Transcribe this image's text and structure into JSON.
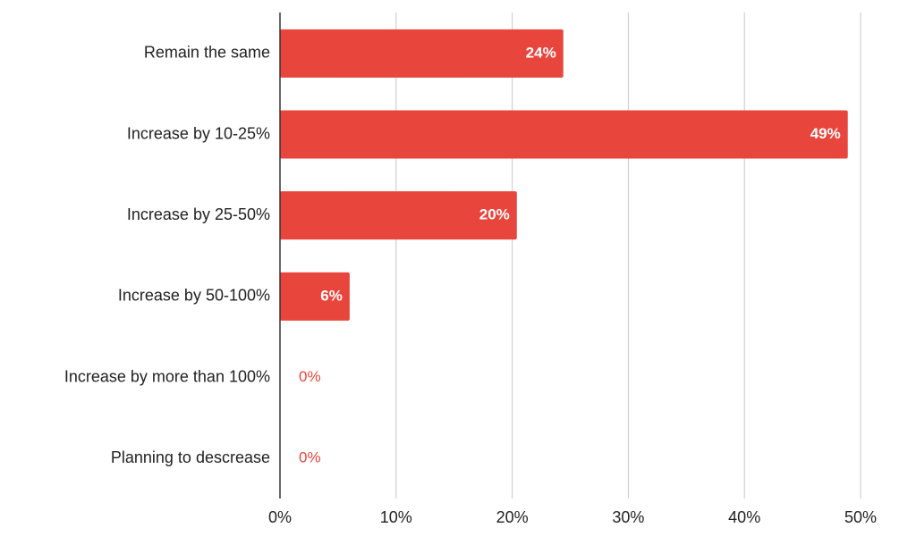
{
  "chart_data": {
    "type": "bar",
    "orientation": "horizontal",
    "categories": [
      "Remain the same",
      "Increase by 10-25%",
      "Increase by 25-50%",
      "Increase by 50-100%",
      "Increase by more than 100%",
      "Planning to descrease"
    ],
    "values": [
      24.4,
      48.9,
      20.4,
      6,
      0,
      0
    ],
    "value_labels": [
      "24%",
      "49%",
      "20%",
      "6%",
      "0%",
      "0%"
    ],
    "color": "#e8453c",
    "xlim": [
      0,
      50
    ],
    "xticks": [
      {
        "value": 0,
        "label": "0%"
      },
      {
        "value": 10,
        "label": "10%"
      },
      {
        "value": 20,
        "label": "20%"
      },
      {
        "value": 30,
        "label": "30%"
      },
      {
        "value": 40,
        "label": "40%"
      },
      {
        "value": 50,
        "label": "50%"
      }
    ],
    "grid": true
  }
}
